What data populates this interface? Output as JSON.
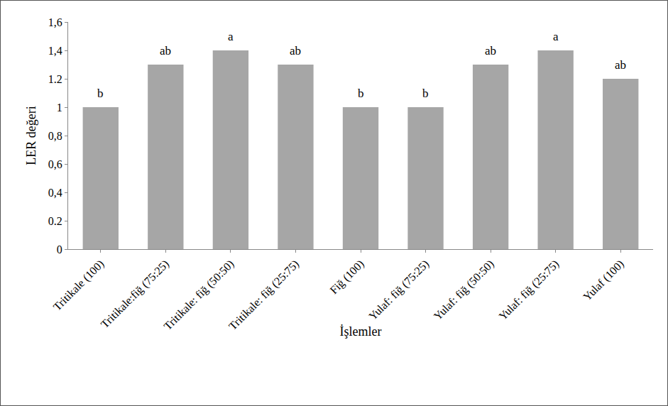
{
  "chart_data": {
    "type": "bar",
    "x_label": "İşlemler",
    "y_label": "LER değeri",
    "categories": [
      "Tritikale (100)",
      "Tritikale:fiğ (75:25)",
      "Tritikale: fiğ (50:50)",
      "Tritikale: fiğ (25:75)",
      "Fiğ (100)",
      "Yulaf: fiğ (75:25)",
      "Yulaf: fiğ (50:50)",
      "Yulaf: fiğ (25:75)",
      "Yulaf (100)"
    ],
    "values": [
      1.0,
      1.3,
      1.4,
      1.3,
      1.0,
      1.0,
      1.3,
      1.4,
      1.2
    ],
    "annotations": [
      "b",
      "ab",
      "a",
      "ab",
      "b",
      "b",
      "ab",
      "a",
      "ab"
    ],
    "color": "#a6a6a6",
    "ylim": [
      0,
      1.6
    ],
    "yticks": [
      0,
      0.2,
      {
        "value": 0.4,
        "label": "0,4"
      },
      {
        "value": 0.6,
        "label": "0,6"
      },
      {
        "value": 0.8,
        "label": "0,8"
      },
      1,
      1.2,
      {
        "value": 1.4,
        "label": "1,4"
      },
      {
        "value": 1.6,
        "label": "1,6"
      }
    ],
    "grid": false
  }
}
